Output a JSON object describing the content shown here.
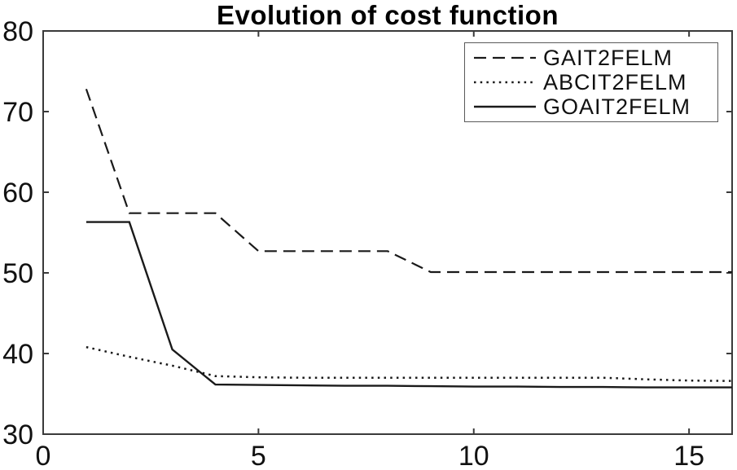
{
  "chart_data": {
    "type": "line",
    "title": "Evolution of cost function",
    "xlabel": "",
    "ylabel": "",
    "xlim": [
      0,
      16
    ],
    "ylim": [
      30,
      80
    ],
    "xticks": [
      0,
      5,
      10,
      15
    ],
    "yticks": [
      30,
      40,
      50,
      60,
      70,
      80
    ],
    "grid": false,
    "box": true,
    "legend_position": "top-right",
    "x": [
      1,
      2,
      3,
      4,
      5,
      6,
      7,
      8,
      9,
      10,
      11,
      12,
      13,
      14,
      15,
      16
    ],
    "series": [
      {
        "name": "GAIT2FELM",
        "style": "dashed",
        "color": "#1a1a1a",
        "values": [
          72.8,
          57.4,
          57.4,
          57.4,
          52.7,
          52.7,
          52.7,
          52.7,
          50.1,
          50.1,
          50.1,
          50.1,
          50.1,
          50.1,
          50.1,
          50.1
        ]
      },
      {
        "name": "ABCIT2FELM",
        "style": "dotted",
        "color": "#1a1a1a",
        "values": [
          40.8,
          39.6,
          38.5,
          37.2,
          37.05,
          37.0,
          37.0,
          37.0,
          37.0,
          37.0,
          37.0,
          37.0,
          37.0,
          36.8,
          36.65,
          36.6
        ]
      },
      {
        "name": "GOAIT2FELM",
        "style": "solid",
        "color": "#1a1a1a",
        "values": [
          56.3,
          56.3,
          40.5,
          36.15,
          36.1,
          36.05,
          36.0,
          36.0,
          35.95,
          35.9,
          35.9,
          35.85,
          35.85,
          35.8,
          35.8,
          35.8
        ]
      }
    ],
    "axis_color": "#3a3a3a",
    "tick_label_color": "#111111",
    "background": "#ffffff"
  }
}
